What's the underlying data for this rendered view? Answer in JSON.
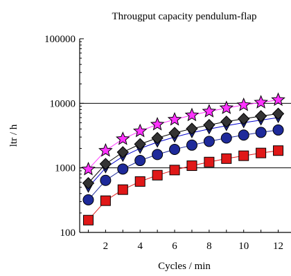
{
  "chart_data": {
    "type": "line",
    "title": "Througput capacity pendulum-flap",
    "xlabel": "Cycles / min",
    "ylabel": "ltr / h",
    "yscale": "log",
    "xlim": [
      0.5,
      12.5
    ],
    "ylim": [
      100,
      100000
    ],
    "x_ticks": [
      "2",
      "4",
      "6",
      "8",
      "10",
      "12"
    ],
    "y_ticks": [
      "100",
      "1000",
      "10000",
      "100000"
    ],
    "grid": "horizontal at decades",
    "x": [
      1,
      2,
      3,
      4,
      5,
      6,
      7,
      8,
      9,
      10,
      11,
      12
    ],
    "series": [
      {
        "marker": "star",
        "color": "#ff33ff",
        "line_color": "#ff33ff",
        "values": [
          950,
          1850,
          2800,
          3700,
          4700,
          5600,
          6550,
          7500,
          8450,
          9400,
          10300,
          11300
        ]
      },
      {
        "marker": "diamond",
        "color": "#333333",
        "line_color": "#000000",
        "values": [
          580,
          1150,
          1750,
          2330,
          2900,
          3480,
          4050,
          4620,
          5200,
          5750,
          6330,
          6900
        ]
      },
      {
        "marker": "triangle-down",
        "color": "#1e2a9a",
        "line_color": "#0000cc",
        "values": [
          500,
          1000,
          1500,
          2000,
          2500,
          3000,
          3500,
          4000,
          4500,
          5000,
          5500,
          6000
        ]
      },
      {
        "marker": "circle",
        "color": "#1e2a9a",
        "line_color": "#1e2a9a",
        "values": [
          320,
          640,
          960,
          1300,
          1610,
          1930,
          2250,
          2570,
          2900,
          3220,
          3540,
          3860
        ]
      },
      {
        "marker": "square",
        "color": "#e01818",
        "line_color": "#e01818",
        "values": [
          155,
          310,
          460,
          615,
          770,
          925,
          1080,
          1230,
          1390,
          1540,
          1700,
          1850
        ]
      }
    ]
  }
}
